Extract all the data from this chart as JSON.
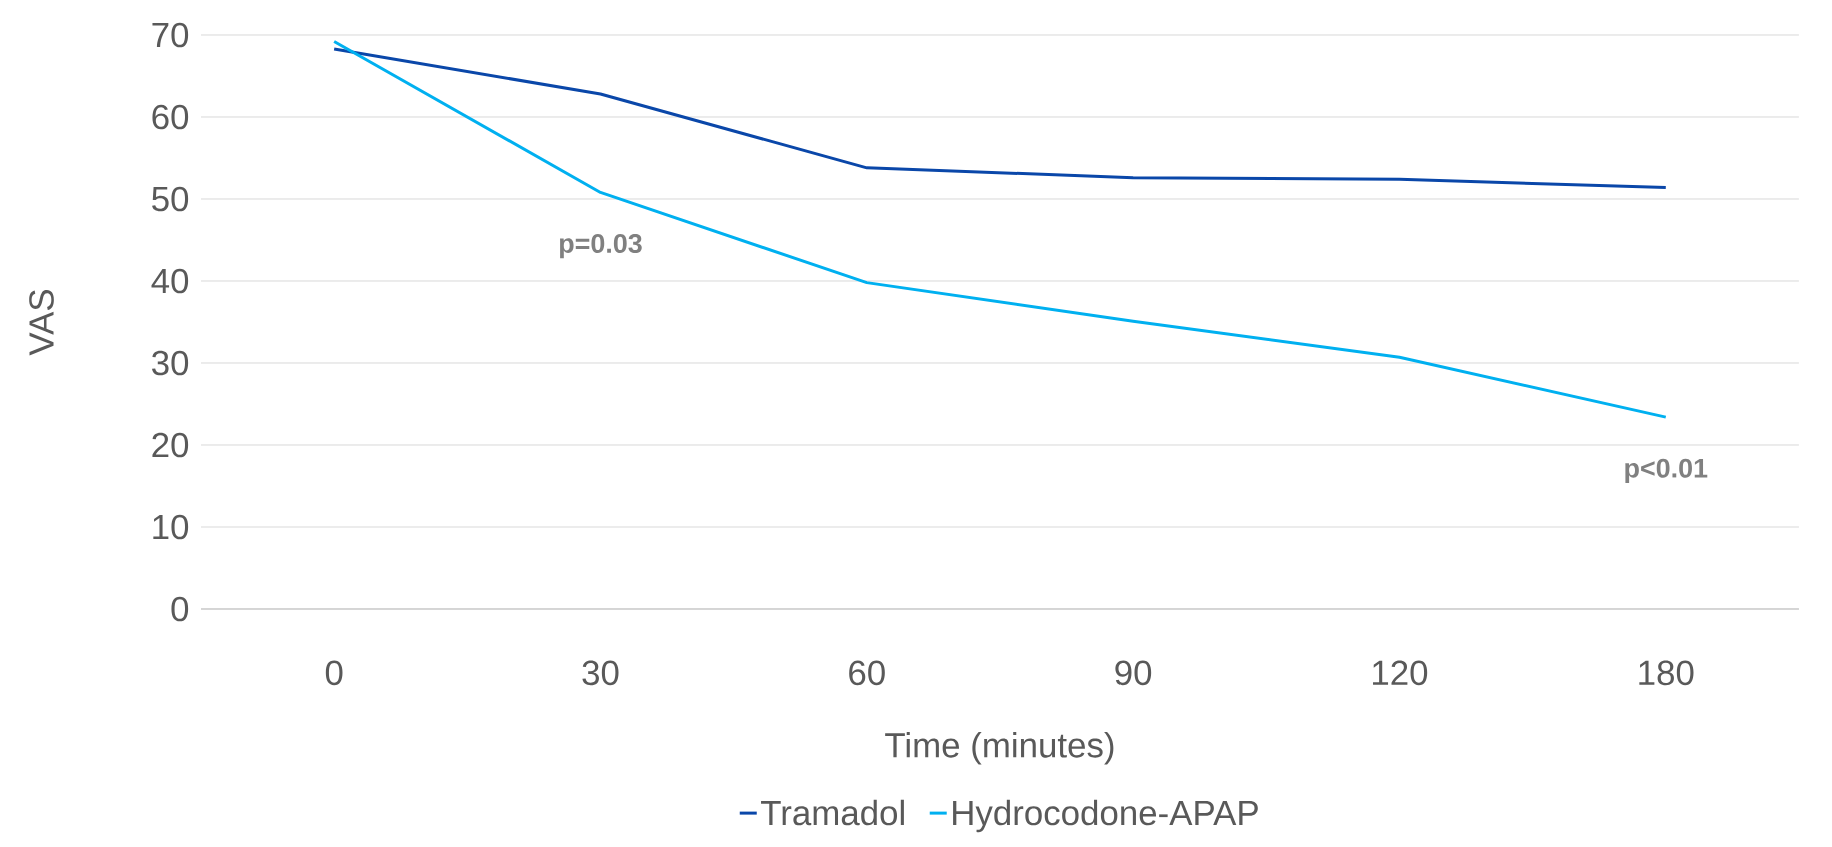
{
  "chart_data": {
    "type": "line",
    "xlabel": "Time (minutes)",
    "ylabel": "VAS",
    "categories": [
      "0",
      "30",
      "60",
      "90",
      "120",
      "180"
    ],
    "series": [
      {
        "name": "Tramadol",
        "color": "#0a47a9",
        "values": [
          68.3,
          62.8,
          53.8,
          52.6,
          52.4,
          51.4
        ]
      },
      {
        "name": "Hydrocodone-APAP",
        "color": "#00b0f0",
        "values": [
          69.2,
          50.8,
          39.8,
          35.1,
          30.7,
          23.4
        ]
      }
    ],
    "ylim": [
      0,
      70
    ],
    "yticks": [
      0,
      10,
      20,
      30,
      40,
      50,
      60,
      70
    ],
    "grid": "y",
    "legend": "bottom",
    "marker": "none",
    "line_style": "solid",
    "annotations": [
      {
        "text": "p=0.03",
        "x": "30",
        "y": 50.8
      },
      {
        "text": "p<0.01",
        "x": "180",
        "y": 23.4
      }
    ]
  }
}
